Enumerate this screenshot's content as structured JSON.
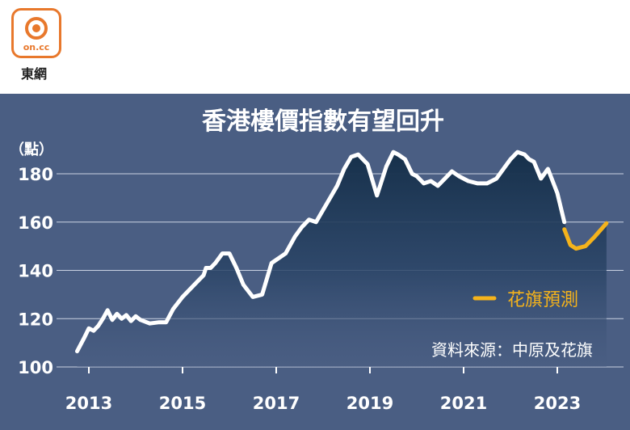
{
  "logo": {
    "text": "on.cc",
    "name": "東網",
    "color": "#e8782c"
  },
  "chart_data": {
    "type": "line",
    "title": "香港樓價指數有望回升",
    "unit_label": "（點）",
    "ylim": [
      100,
      190
    ],
    "yticks": [
      100,
      120,
      140,
      160,
      180
    ],
    "xlim": [
      2012.45,
      2024.3
    ],
    "xticks": [
      2013,
      2015,
      2017,
      2019,
      2021,
      2023
    ],
    "grid": true,
    "source": "資料來源：中原及花旗",
    "colors": {
      "background": "#4a5e83",
      "actual": "#ffffff",
      "forecast": "#f5b31b",
      "fill": "#1b3149"
    },
    "series": [
      {
        "name": "",
        "x": [
          2012.75,
          2012.9,
          2013.0,
          2013.1,
          2013.2,
          2013.3,
          2013.4,
          2013.5,
          2013.6,
          2013.7,
          2013.8,
          2013.9,
          2014.0,
          2014.1,
          2014.3,
          2014.5,
          2014.65,
          2014.8,
          2015.0,
          2015.2,
          2015.35,
          2015.45,
          2015.5,
          2015.6,
          2015.7,
          2015.85,
          2016.0,
          2016.15,
          2016.3,
          2016.5,
          2016.7,
          2016.9,
          2017.2,
          2017.4,
          2017.55,
          2017.7,
          2017.85,
          2018.0,
          2018.15,
          2018.3,
          2018.45,
          2018.6,
          2018.75,
          2018.95,
          2019.15,
          2019.35,
          2019.5,
          2019.6,
          2019.75,
          2019.9,
          2020.0,
          2020.15,
          2020.3,
          2020.45,
          2020.6,
          2020.75,
          2020.9,
          2021.1,
          2021.3,
          2021.5,
          2021.7,
          2021.85,
          2022.0,
          2022.15,
          2022.3,
          2022.4,
          2022.5,
          2022.65,
          2022.8,
          2023.0,
          2023.15
        ],
        "values": [
          106.5,
          112,
          116,
          115,
          117,
          120,
          123.5,
          119.5,
          122,
          120,
          121.5,
          119,
          121,
          119.5,
          118,
          118.5,
          118.5,
          124,
          129,
          133,
          136,
          138,
          141,
          141,
          143,
          147,
          147,
          141,
          134,
          129,
          130,
          143,
          147,
          154,
          158,
          161,
          160,
          165,
          170,
          175,
          182,
          187,
          188,
          184,
          171,
          183,
          189,
          188,
          186,
          180,
          179,
          176,
          177,
          175,
          178,
          181,
          179,
          177,
          176,
          176,
          178,
          182,
          186,
          189,
          188,
          186,
          185,
          178,
          182,
          172,
          160
        ]
      },
      {
        "name": "花旗預測",
        "x": [
          2023.15,
          2023.28,
          2023.4,
          2023.6,
          2023.8,
          2024.05
        ],
        "values": [
          157,
          150.5,
          149,
          150,
          154,
          159.5
        ]
      }
    ]
  }
}
